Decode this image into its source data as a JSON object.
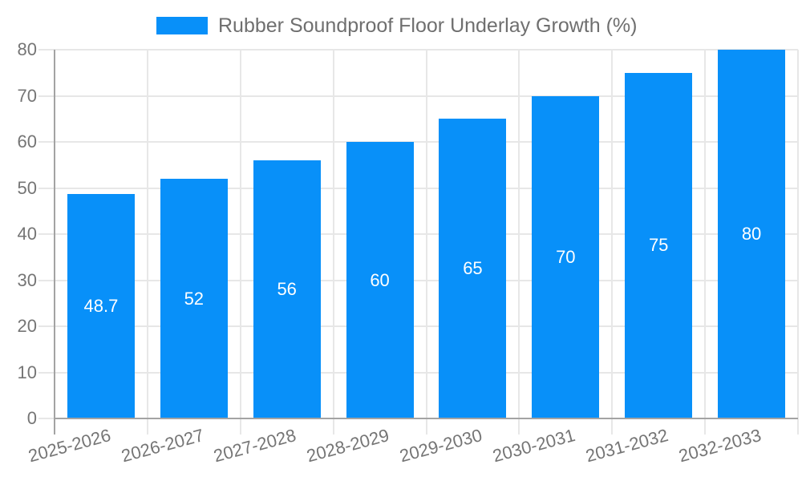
{
  "legend": {
    "label": "Rubber Soundproof Floor Underlay Growth (%)"
  },
  "colors": {
    "bar": "#0890f9",
    "bar_label": "#ffffff",
    "tick_text": "#757575",
    "legend_text": "#6f6f6f",
    "axis": "#a3a3a3",
    "grid": "#e7e7e7",
    "background": "#ffffff"
  },
  "chart_data": {
    "type": "bar",
    "title": "",
    "xlabel": "",
    "ylabel": "",
    "categories": [
      "2025-2026",
      "2026-2027",
      "2027-2028",
      "2028-2029",
      "2029-2030",
      "2030-2031",
      "2031-2032",
      "2032-2033"
    ],
    "values": [
      48.7,
      52,
      56,
      60,
      65,
      70,
      75,
      80
    ],
    "value_labels": [
      "48.7",
      "52",
      "56",
      "60",
      "65",
      "70",
      "75",
      "80"
    ],
    "series_name": "Rubber Soundproof Floor Underlay Growth (%)",
    "ylim": [
      0,
      80
    ],
    "yticks": [
      0,
      10,
      20,
      30,
      40,
      50,
      60,
      70,
      80
    ],
    "grid": true,
    "legend_position": "top-center",
    "bar_label_position": "inside-middle",
    "x_label_rotation_deg": -15
  }
}
